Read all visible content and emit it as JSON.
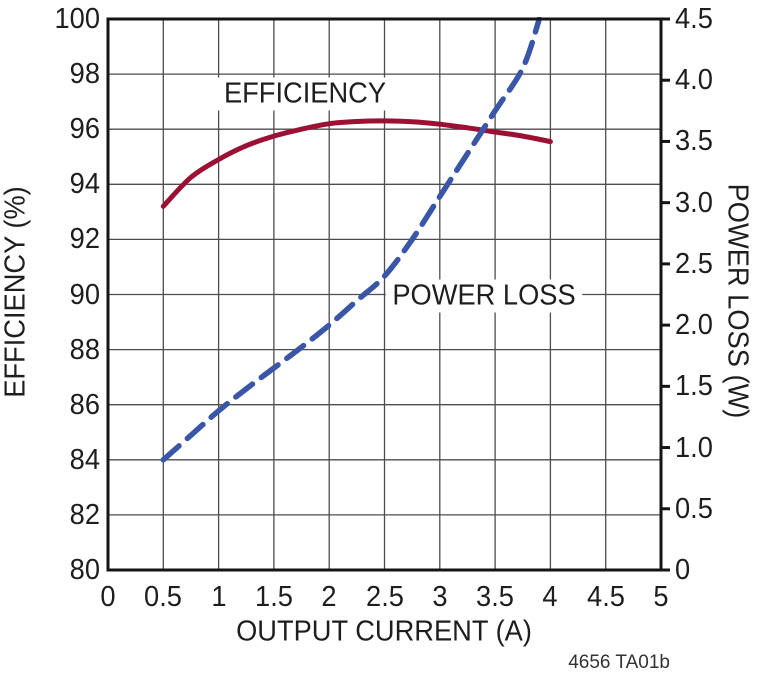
{
  "figure": {
    "footer": "4656 TA01b"
  },
  "chart_data": {
    "type": "line",
    "title": "",
    "xlabel": "OUTPUT CURRENT (A)",
    "ylabel_left": "EFFICIENCY (%)",
    "ylabel_right": "POWER LOSS (W)",
    "grid": true,
    "x_axis": {
      "min": 0,
      "max": 5,
      "tick_step": 0.5,
      "ticks": [
        "0",
        "0.5",
        "1",
        "1.5",
        "2",
        "2.5",
        "3",
        "3.5",
        "4",
        "4.5",
        "5"
      ]
    },
    "y_left_axis": {
      "min": 80,
      "max": 100,
      "tick_step": 2,
      "ticks": [
        "100",
        "98",
        "96",
        "94",
        "92",
        "90",
        "88",
        "86",
        "84",
        "82",
        "80"
      ]
    },
    "y_right_axis": {
      "min": 0,
      "max": 4.5,
      "tick_step": 0.5,
      "ticks": [
        "4.5",
        "4.0",
        "3.5",
        "3.0",
        "2.5",
        "2.0",
        "1.5",
        "1.0",
        "0.5",
        "0"
      ]
    },
    "colors": {
      "grid": "#4d4d4d",
      "frame": "#141414",
      "efficiency": "#9c1033",
      "power_loss": "#3a56a7"
    },
    "series": [
      {
        "name": "EFFICIENCY",
        "axis": "left",
        "units": "%",
        "style": "solid",
        "color": "#9c1033",
        "points": [
          [
            0.5,
            93.2
          ],
          [
            0.75,
            94.25
          ],
          [
            1.0,
            94.9
          ],
          [
            1.25,
            95.4
          ],
          [
            1.5,
            95.75
          ],
          [
            1.75,
            96.0
          ],
          [
            2.0,
            96.2
          ],
          [
            2.25,
            96.28
          ],
          [
            2.5,
            96.3
          ],
          [
            2.75,
            96.27
          ],
          [
            3.0,
            96.18
          ],
          [
            3.25,
            96.05
          ],
          [
            3.5,
            95.9
          ],
          [
            3.75,
            95.75
          ],
          [
            4.0,
            95.55
          ]
        ]
      },
      {
        "name": "POWER LOSS",
        "axis": "right",
        "units": "W",
        "style": "dashed",
        "color": "#3a56a7",
        "points": [
          [
            0.5,
            0.9
          ],
          [
            0.75,
            1.1
          ],
          [
            1.0,
            1.3
          ],
          [
            1.25,
            1.48
          ],
          [
            1.5,
            1.65
          ],
          [
            1.75,
            1.82
          ],
          [
            2.0,
            2.0
          ],
          [
            2.25,
            2.2
          ],
          [
            2.5,
            2.4
          ],
          [
            2.75,
            2.7
          ],
          [
            3.0,
            3.05
          ],
          [
            3.25,
            3.4
          ],
          [
            3.5,
            3.75
          ],
          [
            3.75,
            4.1
          ],
          [
            3.9,
            4.5
          ]
        ]
      }
    ],
    "annotations": [
      {
        "text": "EFFICIENCY"
      },
      {
        "text": "POWER LOSS"
      }
    ]
  }
}
